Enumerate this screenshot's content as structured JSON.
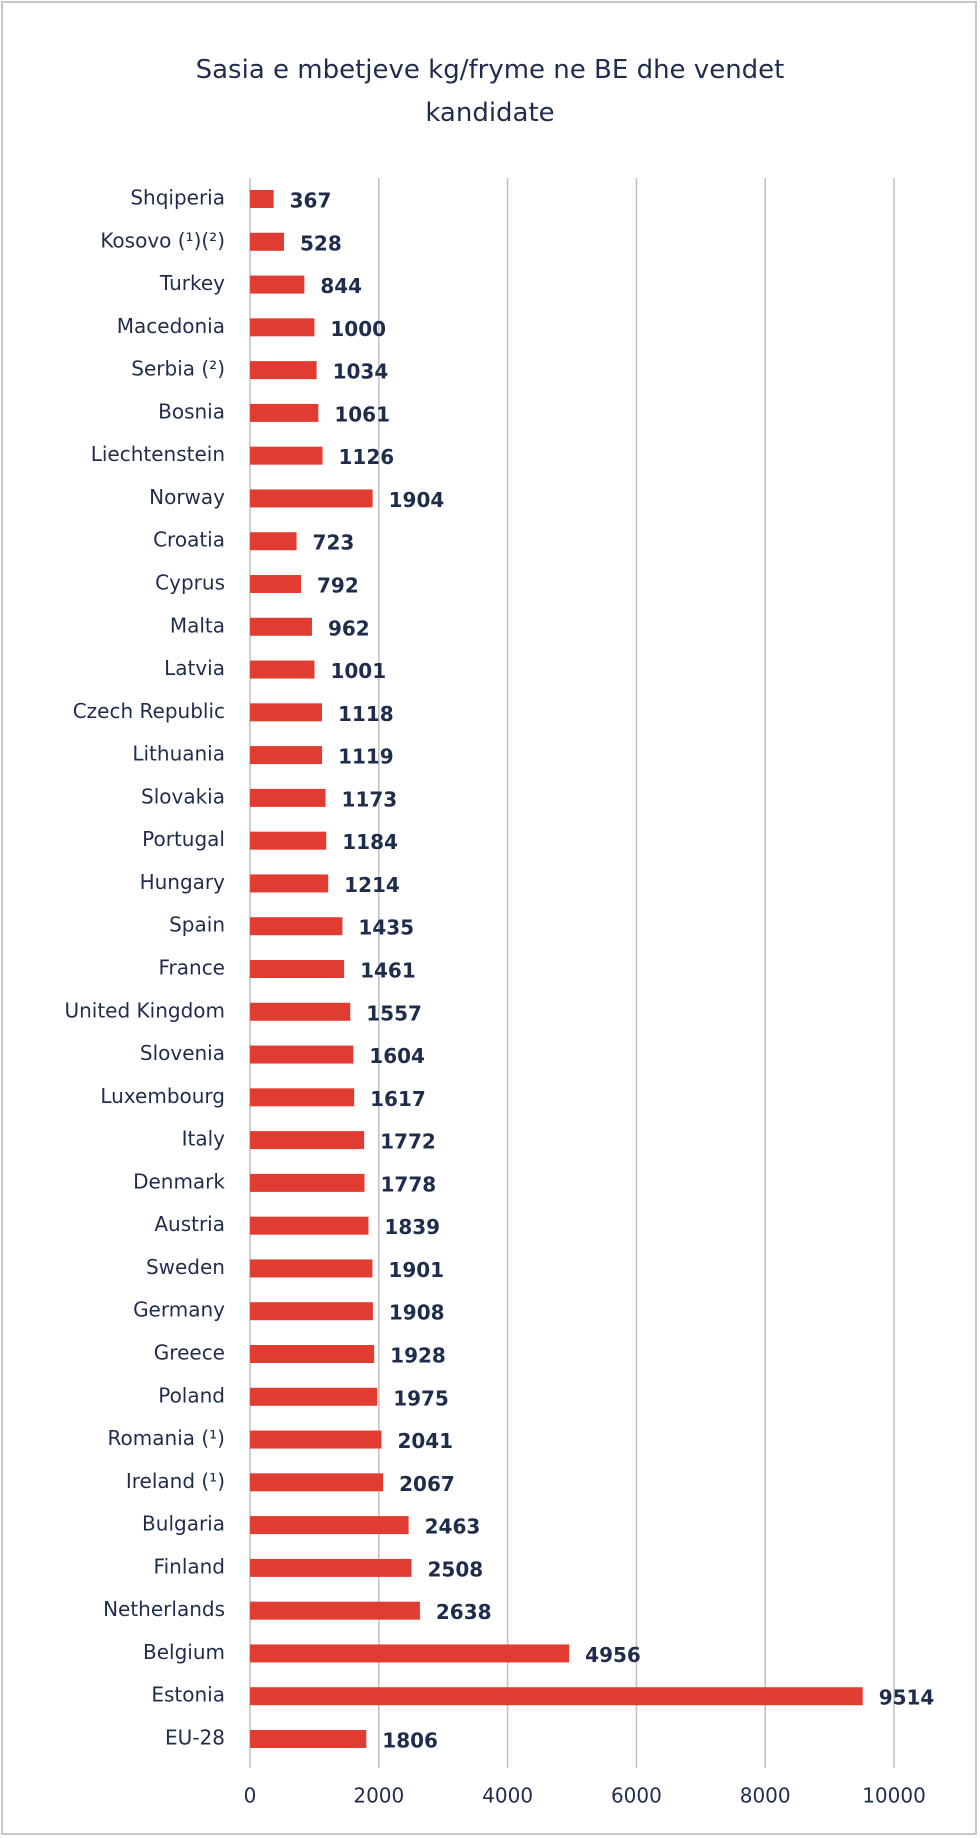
{
  "chart_data": {
    "type": "bar",
    "orientation": "horizontal",
    "title": "Sasia e mbetjeve kg/fryme ne BE dhe vendet kandidate",
    "categories": [
      "Shqiperia",
      "Kosovo (¹)(²)",
      "Turkey",
      "Macedonia",
      "Serbia (²)",
      "Bosnia",
      "Liechtenstein",
      "Norway",
      "Croatia",
      "Cyprus",
      "Malta",
      "Latvia",
      "Czech Republic",
      "Lithuania",
      "Slovakia",
      "Portugal",
      "Hungary",
      "Spain",
      "France",
      "United Kingdom",
      "Slovenia",
      "Luxembourg",
      "Italy",
      "Denmark",
      "Austria",
      "Sweden",
      "Germany",
      "Greece",
      "Poland",
      "Romania (¹)",
      "Ireland (¹)",
      "Bulgaria",
      "Finland",
      "Netherlands",
      "Belgium",
      "Estonia",
      "EU-28"
    ],
    "values": [
      367,
      528,
      844,
      1000,
      1034,
      1061,
      1126,
      1904,
      723,
      792,
      962,
      1001,
      1118,
      1119,
      1173,
      1184,
      1214,
      1435,
      1461,
      1557,
      1604,
      1617,
      1772,
      1778,
      1839,
      1901,
      1908,
      1928,
      1975,
      2041,
      2067,
      2463,
      2508,
      2638,
      4956,
      9514,
      1806
    ],
    "color": "#e03c31",
    "xlim": [
      0,
      10000
    ],
    "xticks": [
      0,
      2000,
      4000,
      6000,
      8000,
      10000
    ],
    "grid": true
  }
}
